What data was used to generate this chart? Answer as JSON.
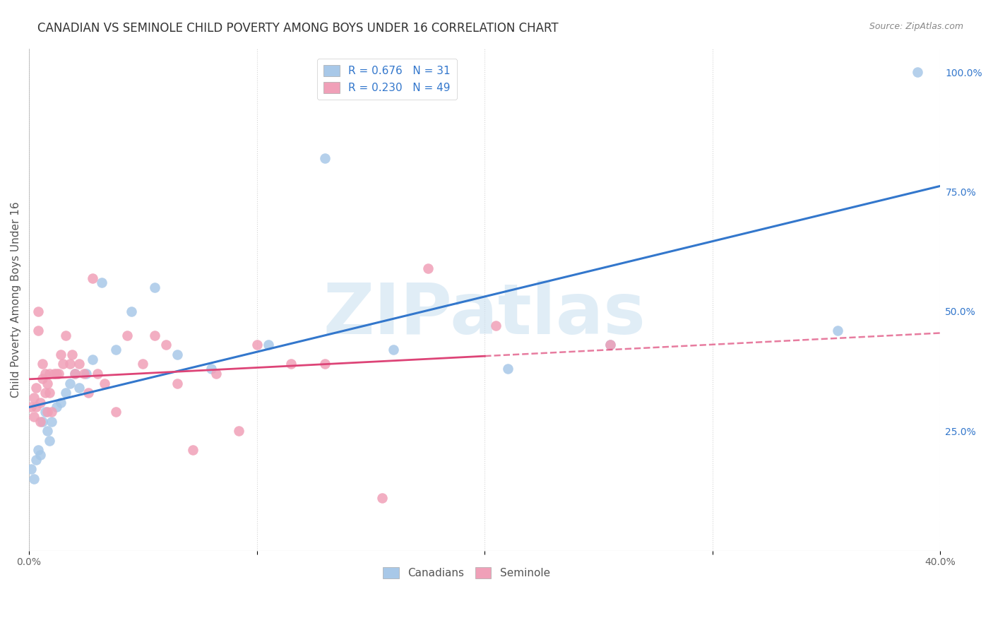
{
  "title": "CANADIAN VS SEMINOLE CHILD POVERTY AMONG BOYS UNDER 16 CORRELATION CHART",
  "source": "Source: ZipAtlas.com",
  "ylabel": "Child Poverty Among Boys Under 16",
  "xlim": [
    0.0,
    0.4
  ],
  "ylim": [
    0.0,
    1.05
  ],
  "xticks": [
    0.0,
    0.1,
    0.2,
    0.3,
    0.4
  ],
  "xticklabels": [
    "0.0%",
    "",
    "",
    "",
    "40.0%"
  ],
  "yticks_right": [
    0.25,
    0.5,
    0.75,
    1.0
  ],
  "ytick_right_labels": [
    "25.0%",
    "50.0%",
    "75.0%",
    "100.0%"
  ],
  "grid_color": "#d0d0d0",
  "background_color": "#ffffff",
  "canadians": {
    "label": "Canadians",
    "R": 0.676,
    "N": 31,
    "color": "#a8c8e8",
    "line_color": "#3377cc",
    "x": [
      0.001,
      0.002,
      0.003,
      0.004,
      0.005,
      0.006,
      0.007,
      0.008,
      0.009,
      0.01,
      0.012,
      0.014,
      0.016,
      0.018,
      0.02,
      0.022,
      0.025,
      0.028,
      0.032,
      0.038,
      0.045,
      0.055,
      0.065,
      0.08,
      0.105,
      0.13,
      0.16,
      0.21,
      0.255,
      0.355,
      0.39
    ],
    "y": [
      0.17,
      0.15,
      0.19,
      0.21,
      0.2,
      0.27,
      0.29,
      0.25,
      0.23,
      0.27,
      0.3,
      0.31,
      0.33,
      0.35,
      0.37,
      0.34,
      0.37,
      0.4,
      0.56,
      0.42,
      0.5,
      0.55,
      0.41,
      0.38,
      0.43,
      0.82,
      0.42,
      0.38,
      0.43,
      0.46,
      1.0
    ]
  },
  "seminole": {
    "label": "Seminole",
    "R": 0.23,
    "N": 49,
    "color": "#f0a0b8",
    "line_color": "#dd4477",
    "seminole_line_end_solid": 0.2,
    "seminole_line_end_dashed": 0.4,
    "x": [
      0.001,
      0.002,
      0.002,
      0.003,
      0.003,
      0.004,
      0.004,
      0.005,
      0.005,
      0.006,
      0.006,
      0.007,
      0.007,
      0.008,
      0.008,
      0.009,
      0.009,
      0.01,
      0.011,
      0.012,
      0.013,
      0.014,
      0.015,
      0.016,
      0.018,
      0.019,
      0.02,
      0.022,
      0.024,
      0.026,
      0.028,
      0.03,
      0.033,
      0.038,
      0.043,
      0.05,
      0.055,
      0.06,
      0.065,
      0.072,
      0.082,
      0.092,
      0.1,
      0.115,
      0.13,
      0.155,
      0.175,
      0.205,
      0.255
    ],
    "y": [
      0.3,
      0.32,
      0.28,
      0.34,
      0.3,
      0.5,
      0.46,
      0.31,
      0.27,
      0.36,
      0.39,
      0.33,
      0.37,
      0.35,
      0.29,
      0.37,
      0.33,
      0.29,
      0.37,
      0.37,
      0.37,
      0.41,
      0.39,
      0.45,
      0.39,
      0.41,
      0.37,
      0.39,
      0.37,
      0.33,
      0.57,
      0.37,
      0.35,
      0.29,
      0.45,
      0.39,
      0.45,
      0.43,
      0.35,
      0.21,
      0.37,
      0.25,
      0.43,
      0.39,
      0.39,
      0.11,
      0.59,
      0.47,
      0.43
    ]
  },
  "watermark_text": "ZIPatlas",
  "watermark_color": "#c8dff0",
  "watermark_alpha": 0.55,
  "title_fontsize": 12,
  "axis_label_fontsize": 11,
  "tick_fontsize": 10,
  "legend_fontsize": 11
}
